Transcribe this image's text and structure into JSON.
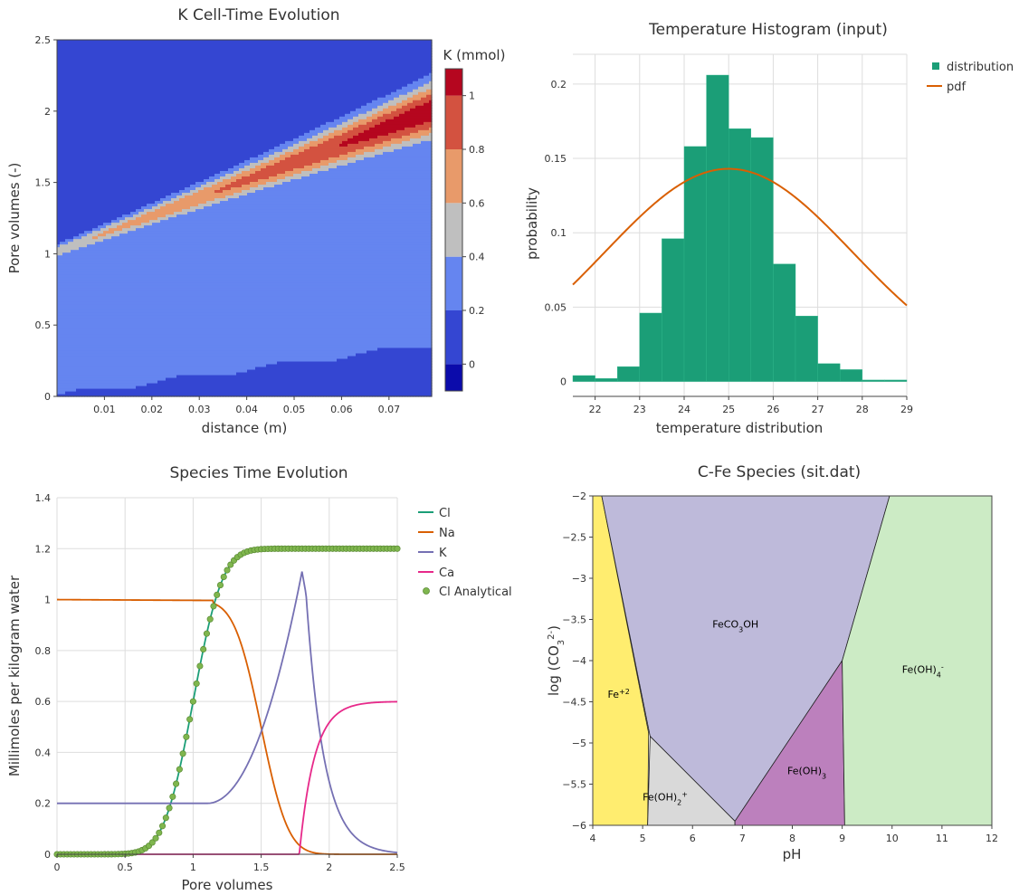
{
  "chart_data": [
    {
      "type": "heatmap",
      "title": "K Cell-Time Evolution",
      "xlabel": "distance (m)",
      "ylabel": "Pore volumes (-)",
      "xlim": [
        0,
        0.079
      ],
      "ylim": [
        0,
        2.5
      ],
      "xticks": [
        "0.01",
        "0.02",
        "0.03",
        "0.04",
        "0.05",
        "0.06",
        "0.07"
      ],
      "yticks": [
        "0",
        "0.5",
        "1",
        "1.5",
        "2",
        "2.5"
      ],
      "colorbar": {
        "title": "K (mmol)",
        "ticks": [
          "0",
          "0.2",
          "0.4",
          "0.6",
          "0.8",
          "1"
        ],
        "levels": [
          -0.1,
          0.0,
          0.2,
          0.4,
          0.6,
          0.8,
          1.0,
          1.1
        ],
        "colors": [
          "#0b0bab",
          "#3446d2",
          "#6585f0",
          "#bfbfbf",
          "#e89a6a",
          "#d35240",
          "#b5061f"
        ]
      }
    },
    {
      "type": "bar",
      "title": "Temperature Histogram (input)",
      "xlabel": "temperature distribution",
      "ylabel": "probability",
      "xlim": [
        21.5,
        29
      ],
      "ylim": [
        -0.01,
        0.22
      ],
      "xticks": [
        "22",
        "23",
        "24",
        "25",
        "26",
        "27",
        "28",
        "29"
      ],
      "yticks": [
        "0",
        "0.05",
        "0.1",
        "0.15",
        "0.2"
      ],
      "bin_edges": [
        21.5,
        22,
        22.5,
        23,
        23.5,
        24,
        24.5,
        25,
        25.5,
        26,
        26.5,
        27,
        27.5,
        28,
        28.5,
        29
      ],
      "series": [
        {
          "name": "distribution",
          "values": [
            0.004,
            0.002,
            0.01,
            0.046,
            0.096,
            0.158,
            0.206,
            0.17,
            0.164,
            0.079,
            0.044,
            0.012,
            0.008,
            0.001,
            0.001
          ]
        },
        {
          "name": "pdf",
          "mean": 25.0,
          "peak": 0.143
        }
      ],
      "colors": {
        "distribution": "#1b9e77",
        "pdf": "#d95f02"
      }
    },
    {
      "type": "line",
      "title": "Species Time Evolution",
      "xlabel": "Pore volumes",
      "ylabel": "Millimoles per kilogram water",
      "xlim": [
        0,
        2.5
      ],
      "ylim": [
        0,
        1.4
      ],
      "xticks": [
        "0",
        "0.5",
        "1",
        "1.5",
        "2",
        "2.5"
      ],
      "yticks": [
        "0",
        "0.2",
        "0.4",
        "0.6",
        "0.8",
        "1",
        "1.2",
        "1.4"
      ],
      "series": [
        {
          "name": "Cl",
          "color": "#1b9e77"
        },
        {
          "name": "Na",
          "color": "#d95f02"
        },
        {
          "name": "K",
          "color": "#7570b3"
        },
        {
          "name": "Ca",
          "color": "#e7298a"
        },
        {
          "name": "Cl Analytical",
          "color": "#7fb64e"
        }
      ]
    },
    {
      "type": "area",
      "title": "C-Fe Species (sit.dat)",
      "xlabel": "pH",
      "ylabel": "log (CO",
      "ylabel_sub": "3",
      "ylabel_sup": "2-",
      "ylabel_end": ")",
      "xlim": [
        4,
        12
      ],
      "ylim": [
        -6,
        -2
      ],
      "xticks": [
        "4",
        "5",
        "6",
        "7",
        "8",
        "9",
        "10",
        "11",
        "12"
      ],
      "yticks": [
        "−2",
        "−2.5",
        "−3",
        "−3.5",
        "−4",
        "−4.5",
        "−5",
        "−5.5",
        "−6"
      ],
      "regions": [
        {
          "id": "fe2",
          "pre": "Fe",
          "sup": "+2",
          "color": "#ffed6f",
          "polygon": [
            [
              4,
              -2
            ],
            [
              4.18,
              -2
            ],
            [
              5.12,
              -4.88
            ],
            [
              5.1,
              -6
            ],
            [
              4,
              -6
            ]
          ]
        },
        {
          "id": "feco3oh",
          "pre": "FeCO",
          "sub": "3",
          "post": "OH",
          "color": "#bebada",
          "polygon": [
            [
              4.18,
              -2
            ],
            [
              9.95,
              -2
            ],
            [
              9.0,
              -4.0
            ],
            [
              6.85,
              -5.95
            ],
            [
              5.15,
              -4.92
            ]
          ]
        },
        {
          "id": "feoh2",
          "pre": "Fe(OH)",
          "sub": "2",
          "sup": "+",
          "color": "#d9d9d9",
          "polygon": [
            [
              5.15,
              -4.92
            ],
            [
              6.85,
              -5.95
            ],
            [
              6.85,
              -6
            ],
            [
              5.1,
              -6
            ]
          ]
        },
        {
          "id": "feoh3",
          "pre": "Fe(OH)",
          "sub": "3",
          "color": "#bc80bd",
          "polygon": [
            [
              6.85,
              -5.95
            ],
            [
              9.0,
              -4.0
            ],
            [
              9.05,
              -6
            ],
            [
              6.85,
              -6
            ]
          ]
        },
        {
          "id": "feoh4",
          "pre": "Fe(OH)",
          "sub": "4",
          "sup": "-",
          "color": "#ccebc5",
          "polygon": [
            [
              9.95,
              -2
            ],
            [
              12,
              -2
            ],
            [
              12,
              -6
            ],
            [
              9.05,
              -6
            ],
            [
              9.0,
              -4.0
            ]
          ]
        }
      ]
    }
  ]
}
